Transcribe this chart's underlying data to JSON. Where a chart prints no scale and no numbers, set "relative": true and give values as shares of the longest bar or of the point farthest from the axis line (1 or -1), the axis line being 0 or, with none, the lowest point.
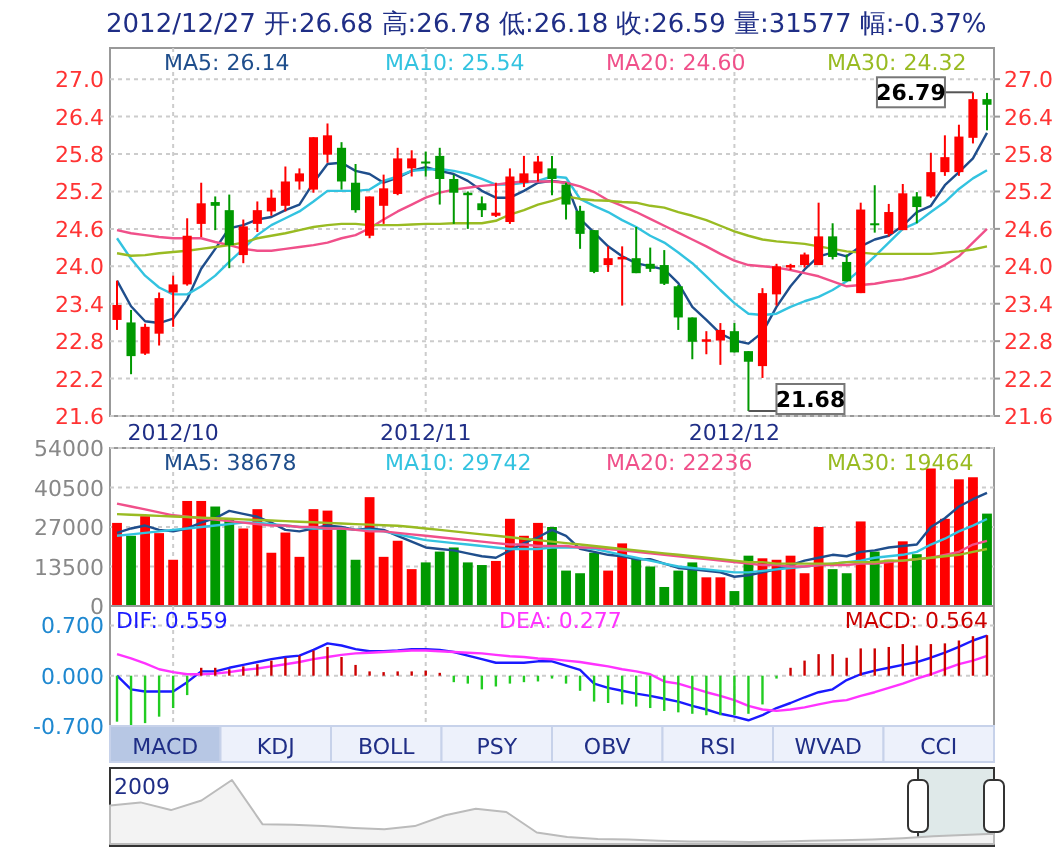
{
  "chart_data": [
    {
      "type": "candlestick",
      "title": "2012/12/27 开:26.68 高:26.78 低:26.18 收:26.59 量:31577 幅:-0.37%",
      "categories": [
        null,
        null,
        null,
        null,
        "2012/10",
        null,
        null,
        null,
        null,
        null,
        null,
        null,
        null,
        null,
        null,
        null,
        null,
        null,
        null,
        null,
        null,
        null,
        "2012/11",
        null,
        null,
        null,
        null,
        null,
        null,
        null,
        null,
        null,
        null,
        null,
        null,
        null,
        null,
        null,
        null,
        null,
        null,
        null,
        null,
        null,
        "2012/12",
        null,
        null,
        null,
        null,
        null,
        null,
        null,
        null,
        null,
        null,
        null,
        null,
        null,
        null,
        null,
        null,
        null,
        null
      ],
      "ohlc": [
        [
          23.14,
          23.77,
          22.98,
          23.38
        ],
        [
          23.1,
          23.3,
          22.27,
          22.56
        ],
        [
          22.6,
          23.08,
          22.58,
          23.03
        ],
        [
          22.92,
          23.58,
          22.73,
          23.49
        ],
        [
          23.58,
          23.85,
          23.03,
          23.71
        ],
        [
          23.71,
          24.77,
          23.69,
          24.49
        ],
        [
          24.68,
          25.34,
          24.47,
          25.01
        ],
        [
          25.03,
          25.12,
          24.58,
          24.97
        ],
        [
          24.9,
          25.15,
          23.97,
          24.34
        ],
        [
          24.18,
          24.75,
          24.05,
          24.64
        ],
        [
          24.68,
          25.04,
          24.55,
          24.9
        ],
        [
          24.88,
          25.23,
          24.81,
          25.1
        ],
        [
          24.97,
          25.6,
          24.88,
          25.36
        ],
        [
          25.36,
          25.57,
          25.23,
          25.49
        ],
        [
          25.23,
          26.07,
          25.18,
          26.07
        ],
        [
          25.79,
          26.29,
          25.66,
          26.1
        ],
        [
          25.9,
          25.99,
          25.23,
          25.36
        ],
        [
          25.34,
          25.64,
          24.86,
          24.9
        ],
        [
          24.49,
          25.12,
          24.45,
          25.12
        ],
        [
          24.97,
          25.47,
          24.68,
          25.25
        ],
        [
          25.16,
          25.9,
          25.14,
          25.73
        ],
        [
          25.57,
          25.86,
          25.44,
          25.73
        ],
        [
          25.68,
          25.84,
          25.44,
          25.66
        ],
        [
          25.77,
          25.9,
          24.99,
          25.4
        ],
        [
          25.4,
          25.47,
          24.68,
          25.18
        ],
        [
          25.18,
          25.2,
          24.6,
          25.14
        ],
        [
          25.01,
          25.12,
          24.79,
          24.9
        ],
        [
          24.81,
          25.34,
          24.79,
          24.86
        ],
        [
          24.71,
          25.57,
          24.68,
          25.44
        ],
        [
          25.34,
          25.77,
          25.27,
          25.49
        ],
        [
          25.49,
          25.77,
          25.36,
          25.68
        ],
        [
          25.57,
          25.77,
          25.14,
          25.4
        ],
        [
          25.31,
          25.34,
          24.75,
          24.99
        ],
        [
          24.89,
          24.97,
          24.28,
          24.52
        ],
        [
          24.58,
          24.58,
          23.89,
          23.91
        ],
        [
          24.02,
          24.32,
          23.91,
          24.13
        ],
        [
          24.11,
          24.32,
          23.37,
          24.15
        ],
        [
          24.13,
          24.63,
          23.89,
          23.89
        ],
        [
          24.04,
          24.3,
          23.91,
          23.96
        ],
        [
          24.02,
          24.26,
          23.7,
          23.72
        ],
        [
          23.68,
          23.7,
          22.98,
          23.18
        ],
        [
          23.18,
          23.18,
          22.51,
          22.79
        ],
        [
          22.79,
          22.96,
          22.59,
          22.83
        ],
        [
          22.81,
          23.09,
          22.42,
          22.98
        ],
        [
          22.96,
          23.09,
          22.62,
          22.62
        ],
        [
          22.64,
          22.64,
          21.68,
          22.47
        ],
        [
          22.4,
          23.65,
          22.21,
          23.57
        ],
        [
          23.55,
          24.04,
          23.37,
          24.0
        ],
        [
          23.98,
          24.04,
          23.94,
          24.02
        ],
        [
          24.02,
          24.22,
          23.98,
          24.19
        ],
        [
          24.02,
          25.02,
          24.02,
          24.48
        ],
        [
          24.48,
          24.69,
          24.11,
          24.15
        ],
        [
          24.07,
          24.19,
          23.76,
          23.76
        ],
        [
          23.57,
          25.02,
          23.57,
          24.91
        ],
        [
          24.69,
          25.3,
          24.54,
          24.67
        ],
        [
          24.52,
          25.0,
          24.48,
          24.87
        ],
        [
          24.58,
          25.32,
          24.58,
          25.17
        ],
        [
          25.12,
          25.19,
          24.69,
          24.95
        ],
        [
          25.12,
          25.82,
          25.1,
          25.51
        ],
        [
          25.51,
          26.1,
          25.45,
          25.75
        ],
        [
          25.51,
          26.27,
          25.45,
          26.08
        ],
        [
          26.06,
          26.79,
          25.97,
          26.68
        ],
        [
          26.68,
          26.78,
          26.18,
          26.59
        ]
      ],
      "colors": [
        "#ff0000",
        "#009900",
        "#ff0000",
        "#ff0000",
        "#ff0000",
        "#ff0000",
        "#ff0000",
        "#009900",
        "#009900",
        "#ff0000",
        "#ff0000",
        "#ff0000",
        "#ff0000",
        "#ff0000",
        "#ff0000",
        "#ff0000",
        "#009900",
        "#009900",
        "#ff0000",
        "#ff0000",
        "#ff0000",
        "#ff0000",
        "#009900",
        "#009900",
        "#009900",
        "#009900",
        "#009900",
        "#ff0000",
        "#ff0000",
        "#ff0000",
        "#ff0000",
        "#009900",
        "#009900",
        "#009900",
        "#009900",
        "#ff0000",
        "#ff0000",
        "#009900",
        "#009900",
        "#009900",
        "#009900",
        "#009900",
        "#ff0000",
        "#ff0000",
        "#009900",
        "#009900",
        "#ff0000",
        "#ff0000",
        "#ff0000",
        "#ff0000",
        "#ff0000",
        "#009900",
        "#009900",
        "#ff0000",
        "#009900",
        "#ff0000",
        "#ff0000",
        "#009900",
        "#ff0000",
        "#ff0000",
        "#ff0000",
        "#ff0000",
        "#009900"
      ],
      "series": [
        {
          "type": "line",
          "name": "MA5: 26.14",
          "color": "#1f4e8c",
          "values": [
            23.77,
            23.36,
            23.12,
            23.09,
            23.16,
            23.47,
            23.96,
            24.28,
            24.61,
            24.66,
            24.75,
            24.79,
            24.9,
            24.99,
            25.34,
            25.64,
            25.66,
            25.53,
            25.48,
            25.34,
            25.42,
            25.53,
            25.59,
            25.53,
            25.48,
            25.37,
            25.21,
            25.1,
            25.1,
            25.21,
            25.34,
            25.37,
            25.34,
            24.76,
            24.54,
            24.32,
            24.16,
            24.05,
            24.0,
            23.95,
            23.73,
            23.35,
            23.14,
            22.92,
            22.81,
            22.76,
            22.94,
            23.35,
            23.68,
            23.95,
            24.16,
            24.22,
            24.16,
            24.32,
            24.43,
            24.49,
            24.65,
            24.87,
            24.97,
            25.3,
            25.51,
            25.73,
            26.14
          ]
        },
        {
          "type": "line",
          "name": "MA10: 25.54",
          "color": "#33c3e0",
          "values": [
            24.45,
            24.12,
            23.85,
            23.66,
            23.55,
            23.55,
            23.68,
            23.85,
            24.07,
            24.28,
            24.5,
            24.66,
            24.77,
            24.88,
            25.04,
            25.21,
            25.21,
            25.21,
            25.23,
            25.37,
            25.44,
            25.53,
            25.55,
            25.56,
            25.53,
            25.48,
            25.4,
            25.31,
            25.31,
            25.34,
            25.37,
            25.44,
            25.42,
            25.08,
            24.97,
            24.87,
            24.74,
            24.63,
            24.49,
            24.38,
            24.22,
            24.05,
            23.84,
            23.62,
            23.41,
            23.24,
            23.22,
            23.24,
            23.35,
            23.44,
            23.51,
            23.62,
            23.76,
            23.95,
            24.16,
            24.38,
            24.6,
            24.7,
            24.87,
            25.03,
            25.24,
            25.41,
            25.54
          ]
        },
        {
          "type": "line",
          "name": "MA20: 24.60",
          "color": "#f0508a",
          "values": [
            24.58,
            24.53,
            24.5,
            24.47,
            24.45,
            24.45,
            24.45,
            24.39,
            24.34,
            24.28,
            24.25,
            24.25,
            24.28,
            24.31,
            24.34,
            24.38,
            24.45,
            24.5,
            24.61,
            24.75,
            24.88,
            24.99,
            25.1,
            25.18,
            25.23,
            25.26,
            25.29,
            25.31,
            25.34,
            25.36,
            25.36,
            25.36,
            25.34,
            25.28,
            25.19,
            25.06,
            24.97,
            24.87,
            24.76,
            24.65,
            24.54,
            24.43,
            24.32,
            24.2,
            24.09,
            24.02,
            24.0,
            23.98,
            23.94,
            23.89,
            23.84,
            23.76,
            23.68,
            23.7,
            23.72,
            23.76,
            23.79,
            23.84,
            23.91,
            24.02,
            24.16,
            24.38,
            24.6
          ]
        },
        {
          "type": "line",
          "name": "MA30: 24.32",
          "color": "#99bb22",
          "values": [
            24.21,
            24.17,
            24.18,
            24.21,
            24.23,
            24.25,
            24.28,
            24.31,
            24.34,
            24.38,
            24.45,
            24.49,
            24.53,
            24.58,
            24.63,
            24.66,
            24.68,
            24.68,
            24.66,
            24.66,
            24.66,
            24.67,
            24.68,
            24.68,
            24.69,
            24.69,
            24.69,
            24.73,
            24.83,
            24.9,
            24.99,
            25.05,
            25.12,
            25.08,
            25.06,
            25.05,
            25.03,
            25.02,
            24.97,
            24.94,
            24.87,
            24.81,
            24.74,
            24.65,
            24.56,
            24.49,
            24.43,
            24.4,
            24.38,
            24.36,
            24.32,
            24.28,
            24.24,
            24.22,
            24.2,
            24.2,
            24.2,
            24.2,
            24.2,
            24.22,
            24.24,
            24.27,
            24.32
          ]
        }
      ],
      "ylim": [
        21.6,
        27.5
      ],
      "yticks": [
        21.6,
        22.2,
        22.8,
        23.4,
        {
          "value": 24,
          "label": "24.0"
        },
        24.6,
        25.2,
        25.8,
        26.4,
        {
          "value": 27,
          "label": "27.0"
        }
      ],
      "y2lim": [
        21.6,
        27.5
      ],
      "y2ticks": [
        21.6,
        22.2,
        22.8,
        23.4,
        {
          "value": 24,
          "label": "24.0"
        },
        24.6,
        25.2,
        25.8,
        26.4,
        {
          "value": 27,
          "label": "27.0"
        }
      ],
      "grid": true,
      "legend": "top",
      "annotations": [
        {
          "text": "26.79",
          "y": 26.79
        },
        "21.68"
      ]
    },
    {
      "type": "bar",
      "categories": [
        null,
        null,
        null,
        null,
        "2012/10",
        null,
        null,
        null,
        null,
        null,
        null,
        null,
        null,
        null,
        null,
        null,
        null,
        null,
        null,
        null,
        null,
        null,
        "2012/11",
        null,
        null,
        null,
        null,
        null,
        null,
        null,
        null,
        null,
        null,
        null,
        null,
        null,
        null,
        null,
        null,
        null,
        null,
        null,
        null,
        null,
        "2012/12",
        null,
        null,
        null,
        null,
        null,
        null,
        null,
        null,
        null,
        null,
        null,
        null,
        null,
        null,
        null,
        null,
        null,
        null
      ],
      "series": [
        {
          "colors": [
            "#ff0000",
            "#009900",
            "#ff0000",
            "#ff0000",
            "#ff0000",
            "#ff0000",
            "#ff0000",
            "#009900",
            "#009900",
            "#ff0000",
            "#ff0000",
            "#ff0000",
            "#ff0000",
            "#ff0000",
            "#ff0000",
            "#ff0000",
            "#009900",
            "#009900",
            "#ff0000",
            "#ff0000",
            "#ff0000",
            "#ff0000",
            "#009900",
            "#009900",
            "#009900",
            "#009900",
            "#009900",
            "#ff0000",
            "#ff0000",
            "#ff0000",
            "#ff0000",
            "#009900",
            "#009900",
            "#009900",
            "#009900",
            "#ff0000",
            "#ff0000",
            "#009900",
            "#009900",
            "#009900",
            "#009900",
            "#009900",
            "#ff0000",
            "#ff0000",
            "#009900",
            "#009900",
            "#ff0000",
            "#ff0000",
            "#ff0000",
            "#ff0000",
            "#ff0000",
            "#009900",
            "#009900",
            "#ff0000",
            "#009900",
            "#ff0000",
            "#ff0000",
            "#009900",
            "#ff0000",
            "#ff0000",
            "#ff0000",
            "#ff0000",
            "#009900"
          ],
          "values": [
            28400,
            24000,
            30700,
            24900,
            15800,
            35900,
            35900,
            34000,
            29800,
            26500,
            33100,
            18200,
            25100,
            16800,
            33100,
            32600,
            26800,
            15800,
            37200,
            16800,
            22300,
            12600,
            14900,
            18600,
            20000,
            14900,
            14000,
            15400,
            29800,
            24000,
            28400,
            27000,
            12100,
            11200,
            18200,
            12100,
            21400,
            16300,
            13500,
            6500,
            12100,
            14900,
            9800,
            9800,
            5100,
            17200,
            16300,
            15800,
            17200,
            11200,
            27000,
            12600,
            11200,
            28900,
            18600,
            15800,
            22100,
            17700,
            47000,
            29800,
            43300,
            44000,
            31577
          ]
        },
        {
          "type": "line",
          "name": "MA5: 38678",
          "color": "#1f4e8c",
          "values": [
            25000,
            26500,
            27500,
            26000,
            25500,
            26500,
            28500,
            30000,
            32500,
            31500,
            30500,
            28500,
            26000,
            25500,
            26500,
            27500,
            27000,
            26000,
            26500,
            26000,
            24000,
            22000,
            20000,
            19500,
            19000,
            18000,
            17000,
            16500,
            19000,
            21500,
            23500,
            26000,
            24000,
            19500,
            18500,
            17500,
            17000,
            16000,
            16000,
            14500,
            13000,
            12500,
            12000,
            11500,
            10000,
            10500,
            11500,
            12500,
            14000,
            15500,
            16500,
            17500,
            17000,
            18500,
            19000,
            20000,
            20500,
            21000,
            27000,
            30000,
            34000,
            36500,
            38678
          ]
        },
        {
          "type": "line",
          "name": "MA10: 29742",
          "color": "#33c3e0",
          "values": [
            24000,
            24500,
            25000,
            25500,
            26000,
            26500,
            27000,
            27500,
            28000,
            28500,
            28500,
            28000,
            27500,
            27000,
            26500,
            26500,
            26500,
            26000,
            26000,
            25500,
            24500,
            23500,
            22500,
            22000,
            21500,
            21000,
            20500,
            20000,
            19500,
            19500,
            19500,
            20000,
            20000,
            20000,
            19500,
            18500,
            17500,
            16500,
            15500,
            14500,
            13500,
            13000,
            12500,
            12000,
            11500,
            11500,
            12000,
            12500,
            13000,
            13500,
            14000,
            14500,
            15000,
            15500,
            16500,
            17000,
            17500,
            18500,
            21000,
            23000,
            25500,
            27500,
            29742
          ]
        },
        {
          "type": "line",
          "name": "MA20: 22236",
          "color": "#f0508a",
          "values": [
            35000,
            34000,
            33000,
            32000,
            31000,
            30500,
            30000,
            29500,
            29000,
            28500,
            28000,
            27500,
            27500,
            27000,
            27000,
            26500,
            26500,
            26000,
            25500,
            25500,
            25000,
            24500,
            24000,
            23500,
            23000,
            22500,
            22000,
            21500,
            21000,
            21000,
            20500,
            20500,
            20500,
            20000,
            20000,
            19500,
            19000,
            18500,
            18000,
            17500,
            17000,
            16500,
            16000,
            15500,
            15000,
            14500,
            14000,
            14000,
            13500,
            13500,
            14000,
            14000,
            14000,
            14500,
            14500,
            15000,
            15500,
            16000,
            16500,
            17500,
            18500,
            21000,
            22236
          ]
        },
        {
          "type": "line",
          "name": "MA30: 19464",
          "color": "#99bb22",
          "values": [
            31400,
            31200,
            31000,
            30800,
            30600,
            30400,
            30200,
            30000,
            29800,
            29600,
            29400,
            29200,
            29000,
            28800,
            28600,
            28400,
            28200,
            28000,
            27800,
            27600,
            27400,
            27000,
            26500,
            26000,
            25500,
            25000,
            24500,
            24000,
            23500,
            23000,
            22500,
            22000,
            21500,
            21000,
            20500,
            20000,
            19500,
            19000,
            18500,
            18000,
            17500,
            17000,
            16500,
            16000,
            15500,
            15000,
            15000,
            14500,
            14500,
            14500,
            14500,
            14500,
            15000,
            15000,
            15000,
            15500,
            15500,
            16000,
            16500,
            17000,
            17500,
            18500,
            19464
          ]
        }
      ],
      "ylim": [
        0,
        54000
      ],
      "yticks": [
        0,
        13500,
        27000,
        40500,
        54000
      ],
      "grid": true,
      "legend": "top",
      "tick_labels": "y"
    },
    {
      "type": "line",
      "categories": [
        null,
        null,
        null,
        null,
        "2012/10",
        null,
        null,
        null,
        null,
        null,
        null,
        null,
        null,
        null,
        null,
        null,
        null,
        null,
        null,
        null,
        null,
        null,
        "2012/11",
        null,
        null,
        null,
        null,
        null,
        null,
        null,
        null,
        null,
        null,
        null,
        null,
        null,
        null,
        null,
        null,
        null,
        null,
        null,
        null,
        null,
        "2012/12",
        null,
        null,
        null,
        null,
        null,
        null,
        null,
        null,
        null,
        null,
        null,
        null,
        null,
        null,
        null,
        null,
        null,
        null
      ],
      "series": [
        {
          "type": "bar",
          "name": "MACD: 0.564",
          "color": "#cc0000",
          "colors": [
            "#22cc22",
            "#22cc22",
            "#22cc22",
            "#22cc22",
            "#22cc22",
            "#22cc22",
            "#cc0000",
            "#cc0000",
            "#cc0000",
            "#cc0000",
            "#cc0000",
            "#cc0000",
            "#cc0000",
            "#cc0000",
            "#cc0000",
            "#cc0000",
            "#cc0000",
            "#cc0000",
            "#cc0000",
            "#cc0000",
            "#cc0000",
            "#cc0000",
            "#cc0000",
            "#cc0000",
            "#22cc22",
            "#22cc22",
            "#22cc22",
            "#22cc22",
            "#22cc22",
            "#22cc22",
            "#22cc22",
            "#22cc22",
            "#22cc22",
            "#22cc22",
            "#22cc22",
            "#22cc22",
            "#22cc22",
            "#22cc22",
            "#22cc22",
            "#22cc22",
            "#22cc22",
            "#22cc22",
            "#22cc22",
            "#22cc22",
            "#22cc22",
            "#22cc22",
            "#22cc22",
            "#22cc22",
            "#cc0000",
            "#cc0000",
            "#cc0000",
            "#cc0000",
            "#cc0000",
            "#cc0000",
            "#cc0000",
            "#cc0000",
            "#cc0000",
            "#cc0000",
            "#cc0000",
            "#cc0000",
            "#cc0000",
            "#cc0000",
            "#cc0000"
          ],
          "values": [
            -0.64,
            -0.69,
            -0.66,
            -0.57,
            -0.45,
            -0.27,
            0.11,
            0.11,
            0.09,
            0.13,
            0.16,
            0.21,
            0.25,
            0.28,
            0.35,
            0.4,
            0.26,
            0.15,
            0.06,
            0.05,
            0.06,
            0.06,
            0.07,
            0.04,
            -0.09,
            -0.11,
            -0.19,
            -0.15,
            -0.11,
            -0.09,
            -0.08,
            -0.04,
            -0.11,
            -0.21,
            -0.36,
            -0.38,
            -0.4,
            -0.43,
            -0.45,
            -0.49,
            -0.51,
            -0.53,
            -0.55,
            -0.55,
            -0.55,
            -0.53,
            -0.4,
            -0.04,
            0.11,
            0.21,
            0.3,
            0.3,
            0.25,
            0.38,
            0.38,
            0.4,
            0.44,
            0.42,
            0.44,
            0.45,
            0.49,
            0.55,
            0.564
          ]
        },
        {
          "name": "DIF: 0.559",
          "color": "#1a1aff",
          "values": [
            0.0,
            -0.19,
            -0.22,
            -0.22,
            -0.22,
            -0.09,
            0.06,
            0.06,
            0.11,
            0.15,
            0.19,
            0.23,
            0.26,
            0.28,
            0.36,
            0.45,
            0.42,
            0.37,
            0.34,
            0.34,
            0.35,
            0.37,
            0.37,
            0.36,
            0.33,
            0.28,
            0.23,
            0.18,
            0.18,
            0.18,
            0.2,
            0.2,
            0.14,
            0.08,
            -0.11,
            -0.17,
            -0.21,
            -0.25,
            -0.28,
            -0.32,
            -0.36,
            -0.42,
            -0.47,
            -0.53,
            -0.57,
            -0.62,
            -0.55,
            -0.45,
            -0.38,
            -0.3,
            -0.23,
            -0.19,
            -0.06,
            0.02,
            0.07,
            0.11,
            0.15,
            0.19,
            0.25,
            0.32,
            0.4,
            0.49,
            0.559
          ]
        },
        {
          "name": "DEA: 0.277",
          "color": "#ff33ff",
          "values": [
            0.3,
            0.24,
            0.17,
            0.09,
            0.05,
            0.02,
            0.02,
            0.03,
            0.05,
            0.08,
            0.1,
            0.13,
            0.16,
            0.19,
            0.23,
            0.26,
            0.29,
            0.31,
            0.32,
            0.33,
            0.34,
            0.35,
            0.35,
            0.34,
            0.33,
            0.32,
            0.31,
            0.29,
            0.27,
            0.26,
            0.24,
            0.23,
            0.21,
            0.19,
            0.16,
            0.13,
            0.09,
            0.06,
            0.02,
            -0.08,
            -0.11,
            -0.17,
            -0.23,
            -0.28,
            -0.34,
            -0.42,
            -0.47,
            -0.49,
            -0.47,
            -0.44,
            -0.4,
            -0.36,
            -0.34,
            -0.28,
            -0.23,
            -0.17,
            -0.11,
            -0.04,
            0.02,
            0.09,
            0.16,
            0.21,
            0.277
          ]
        }
      ],
      "ylim": [
        -0.7,
        0.97
      ],
      "yticks": [
        {
          "value": -0.7,
          "label": "-0.700"
        },
        {
          "value": 0,
          "label": "0.000"
        },
        {
          "value": 0.7,
          "label": "0.700"
        }
      ],
      "grid": true,
      "legend": "top",
      "tick_labels": "y"
    },
    {
      "type": "other",
      "annotations": [
        "MACD",
        "KDJ",
        "BOLL",
        "PSY",
        "OBV",
        "RSI",
        "WVAD",
        "CCI"
      ]
    },
    {
      "type": "area",
      "relative": true,
      "color": "#bbbbbb",
      "categories": [
        null,
        null,
        null,
        null,
        null,
        null,
        null,
        null,
        null,
        null,
        null,
        null,
        null,
        null,
        null,
        null,
        null,
        null,
        null,
        null,
        null,
        null,
        null,
        null,
        null,
        null,
        null,
        null,
        null,
        null
      ],
      "values": [
        0.6,
        0.65,
        0.53,
        0.68,
        1.0,
        0.31,
        0.3,
        0.28,
        0.25,
        0.23,
        0.28,
        0.45,
        0.55,
        0.5,
        0.18,
        0.11,
        0.08,
        0.07,
        0.05,
        0.04,
        0.04,
        0.03,
        0.04,
        0.05,
        0.06,
        0.07,
        0.09,
        0.12,
        0.14,
        0.16
      ],
      "annotations": [
        "2009"
      ]
    }
  ]
}
